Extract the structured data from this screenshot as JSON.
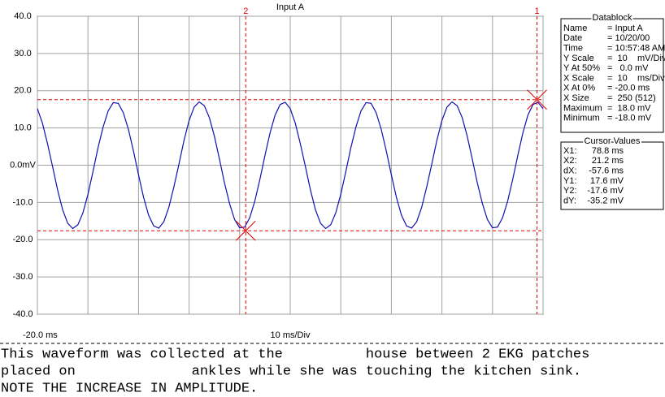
{
  "chart_data": {
    "type": "line",
    "title": "Input A",
    "x_start_label": "-20.0 ms",
    "x_scale_label": "10 ms/Div",
    "xlim": [
      -20,
      80
    ],
    "xticks": [
      -20,
      -10,
      0,
      10,
      20,
      30,
      40,
      50,
      60,
      70,
      80
    ],
    "ylim": [
      -40,
      40
    ],
    "yticks": [
      {
        "value": 40,
        "label": "40.0"
      },
      {
        "value": 30,
        "label": "30.0"
      },
      {
        "value": 20,
        "label": "20.0"
      },
      {
        "value": 10,
        "label": "10.0"
      },
      {
        "value": 0,
        "label": "0.0mV"
      },
      {
        "value": -10,
        "label": "-10.0"
      },
      {
        "value": -20,
        "label": "-20.0"
      },
      {
        "value": -30,
        "label": "-30.0"
      },
      {
        "value": -40,
        "label": "-40.0"
      }
    ],
    "grid": true,
    "x": [
      -20,
      -19,
      -18,
      -17,
      -16,
      -15,
      -14,
      -13,
      -12,
      -11,
      -10,
      -9,
      -8,
      -7,
      -6,
      -5,
      -4,
      -3,
      -2,
      -1,
      0,
      1,
      2,
      3,
      4,
      5,
      6,
      7,
      8,
      9,
      10,
      11,
      12,
      13,
      14,
      15,
      16,
      17,
      18,
      19,
      20,
      21,
      22,
      23,
      24,
      25,
      26,
      27,
      28,
      29,
      30,
      31,
      32,
      33,
      34,
      35,
      36,
      37,
      38,
      39,
      40,
      41,
      42,
      43,
      44,
      45,
      46,
      47,
      48,
      49,
      50,
      51,
      52,
      53,
      54,
      55,
      56,
      57,
      58,
      59,
      60,
      61,
      62,
      63,
      64,
      65,
      66,
      67,
      68,
      69,
      70,
      71,
      72,
      73,
      74,
      75,
      76,
      77,
      78,
      79,
      80
    ],
    "series": [
      {
        "name": "Input A",
        "color": "#1010b0",
        "values": [
          15.2,
          11.3,
          5.8,
          -0.4,
          -6.7,
          -12.0,
          -15.6,
          -17.0,
          -16.0,
          -12.8,
          -7.8,
          -1.7,
          4.7,
          10.3,
          14.6,
          16.8,
          16.6,
          14.1,
          9.6,
          3.8,
          -2.6,
          -8.6,
          -13.4,
          -16.3,
          -16.9,
          -15.2,
          -11.3,
          -5.8,
          0.4,
          6.7,
          12.0,
          15.6,
          17.0,
          16.0,
          12.8,
          7.8,
          1.7,
          -4.7,
          -10.3,
          -14.6,
          -16.8,
          -16.6,
          -14.1,
          -9.6,
          -3.8,
          2.6,
          8.6,
          13.4,
          16.3,
          16.9,
          15.2,
          11.3,
          5.8,
          -0.4,
          -6.7,
          -12.0,
          -15.6,
          -17.0,
          -16.0,
          -12.8,
          -7.8,
          -1.7,
          4.7,
          10.3,
          14.6,
          16.8,
          16.6,
          14.1,
          9.6,
          3.8,
          -2.6,
          -8.6,
          -13.4,
          -16.3,
          -16.9,
          -15.2,
          -11.3,
          -5.8,
          0.4,
          6.7,
          12.0,
          15.6,
          17.0,
          16.0,
          12.8,
          7.8,
          1.7,
          -4.7,
          -10.3,
          -14.6,
          -16.8,
          -16.6,
          -14.1,
          -9.6,
          -3.8,
          2.6,
          8.6,
          13.4,
          16.3,
          16.9,
          15.2
        ]
      }
    ],
    "cursors": [
      {
        "label": "1",
        "x": 78.8,
        "y": 17.6,
        "color": "#e00000"
      },
      {
        "label": "2",
        "x": 21.2,
        "y": -17.6,
        "color": "#e00000"
      }
    ]
  },
  "datablock": {
    "title": "Datablock",
    "rows": [
      [
        "Name",
        "= Input A"
      ],
      [
        "Date",
        "= 10/20/00"
      ],
      [
        "Time",
        "= 10:57:48 AM"
      ],
      [
        "Y Scale",
        "=  10    mV/Div"
      ],
      [
        "Y At 50%",
        "=   0.0 mV"
      ],
      [
        "X Scale",
        "=  10    ms/Div"
      ],
      [
        "X At 0%",
        "= -20.0 ms"
      ],
      [
        "X Size",
        "=  250 (512)"
      ],
      [
        "Maximum",
        "=  18.0 mV"
      ],
      [
        "Minimum",
        "= -18.0 mV"
      ]
    ]
  },
  "cursor_values": {
    "title": "Cursor Values",
    "rows": [
      [
        "X1:",
        "78.8 ms"
      ],
      [
        "X2:",
        "21.2 ms"
      ],
      [
        "dX:",
        "-57.6 ms"
      ],
      [
        "Y1:",
        "17.6 mV"
      ],
      [
        "Y2:",
        "-17.6 mV"
      ],
      [
        "dY:",
        "-35.2 mV"
      ]
    ]
  },
  "comment": [
    "This waveform was collected at the          house between 2 EKG patches",
    "placed on              ankles while she was touching the kitchen sink.",
    "NOTE THE INCREASE IN AMPLITUDE."
  ]
}
